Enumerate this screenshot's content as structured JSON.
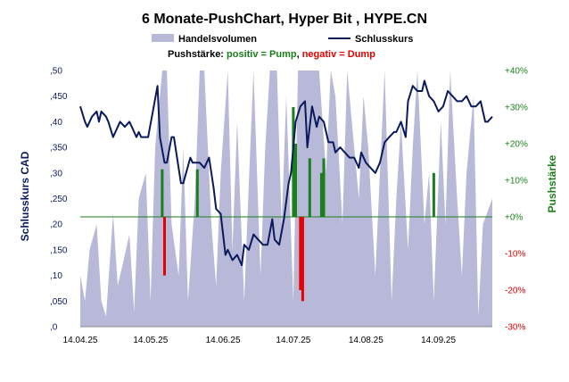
{
  "chart_data": {
    "type": "line",
    "title": "6 Monate-PushChart, Hyper Bit , HYPE.CN",
    "legend": {
      "volume_label": "Handelsvolumen",
      "price_label": "Schlusskurs",
      "push_prefix": "Pushstärke: ",
      "push_positive": "positiv = Pump",
      "push_separator": ", ",
      "push_negative": "negativ = Dump"
    },
    "ylabel": "Schlusskurs CAD",
    "y2label": "Pushstärke",
    "ylim": [
      0,
      0.5
    ],
    "y2lim": [
      -30,
      40
    ],
    "x_range": [
      "2025-04-14",
      "2025-10-07"
    ],
    "y_ticks": [
      ",0",
      ",050",
      ",10",
      ",150",
      ",20",
      ",250",
      ",30",
      ",350",
      ",40",
      ",450",
      ",50"
    ],
    "y2_ticks": [
      "-30%",
      "-20%",
      "-10%",
      "+0%",
      "+10%",
      "+20%",
      "+30%",
      "+40%"
    ],
    "x_ticks": [
      "14.04.25",
      "14.05.25",
      "14.06.25",
      "14.07.25",
      "14.08.25",
      "14.09.25"
    ],
    "colors": {
      "price": "#0a1a5c",
      "volume": "#b8b9d9",
      "pump": "#1a7f1a",
      "dump": "#e60000",
      "zero_line": "#1a7f1a",
      "left_axis": "#0a1a5c",
      "right_axis_pos": "#1a7f1a",
      "right_axis_neg": "#e60000"
    },
    "price_series": {
      "name": "Schlusskurs",
      "x": [
        "2025-04-14",
        "2025-04-16",
        "2025-04-17",
        "2025-04-19",
        "2025-04-21",
        "2025-04-22",
        "2025-04-23",
        "2025-04-25",
        "2025-04-26",
        "2025-04-28",
        "2025-05-01",
        "2025-05-03",
        "2025-05-05",
        "2025-05-06",
        "2025-05-08",
        "2025-05-09",
        "2025-05-10",
        "2025-05-13",
        "2025-05-15",
        "2025-05-17",
        "2025-05-18",
        "2025-05-20",
        "2025-05-21",
        "2025-05-23",
        "2025-05-24",
        "2025-05-27",
        "2025-05-28",
        "2025-05-31",
        "2025-06-01",
        "2025-06-04",
        "2025-06-06",
        "2025-06-08",
        "2025-06-10",
        "2025-06-11",
        "2025-06-13",
        "2025-06-15",
        "2025-06-16",
        "2025-06-18",
        "2025-06-20",
        "2025-06-22",
        "2025-06-23",
        "2025-06-25",
        "2025-06-27",
        "2025-06-29",
        "2025-07-01",
        "2025-07-03",
        "2025-07-05",
        "2025-07-06",
        "2025-07-08",
        "2025-07-10",
        "2025-07-12",
        "2025-07-13",
        "2025-07-15",
        "2025-07-17",
        "2025-07-19",
        "2025-07-20",
        "2025-07-22",
        "2025-07-24",
        "2025-07-25",
        "2025-07-27",
        "2025-07-29",
        "2025-07-31",
        "2025-08-01",
        "2025-08-03",
        "2025-08-05",
        "2025-08-07",
        "2025-08-09",
        "2025-08-11",
        "2025-08-12",
        "2025-08-14",
        "2025-08-16",
        "2025-08-18",
        "2025-08-20",
        "2025-08-22",
        "2025-08-24",
        "2025-08-26",
        "2025-08-27",
        "2025-08-29",
        "2025-08-31",
        "2025-09-01",
        "2025-09-03",
        "2025-09-05",
        "2025-09-07",
        "2025-09-08",
        "2025-09-10",
        "2025-09-12",
        "2025-09-14",
        "2025-09-16",
        "2025-09-18",
        "2025-09-20",
        "2025-09-22",
        "2025-09-24",
        "2025-09-26",
        "2025-09-28",
        "2025-09-30",
        "2025-10-02",
        "2025-10-04",
        "2025-10-05",
        "2025-10-07"
      ],
      "values": [
        0.43,
        0.4,
        0.39,
        0.41,
        0.42,
        0.4,
        0.42,
        0.41,
        0.4,
        0.37,
        0.4,
        0.39,
        0.4,
        0.39,
        0.37,
        0.38,
        0.37,
        0.37,
        0.42,
        0.47,
        0.37,
        0.32,
        0.32,
        0.37,
        0.37,
        0.28,
        0.28,
        0.33,
        0.32,
        0.32,
        0.31,
        0.33,
        0.27,
        0.23,
        0.22,
        0.14,
        0.15,
        0.13,
        0.14,
        0.12,
        0.16,
        0.15,
        0.18,
        0.17,
        0.16,
        0.16,
        0.21,
        0.17,
        0.16,
        0.21,
        0.28,
        0.3,
        0.4,
        0.43,
        0.44,
        0.35,
        0.43,
        0.39,
        0.41,
        0.4,
        0.36,
        0.36,
        0.34,
        0.35,
        0.34,
        0.33,
        0.33,
        0.31,
        0.34,
        0.32,
        0.31,
        0.3,
        0.32,
        0.36,
        0.37,
        0.38,
        0.38,
        0.4,
        0.37,
        0.44,
        0.47,
        0.46,
        0.46,
        0.48,
        0.45,
        0.44,
        0.42,
        0.43,
        0.46,
        0.45,
        0.44,
        0.44,
        0.45,
        0.43,
        0.43,
        0.44,
        0.4,
        0.4,
        0.41
      ]
    },
    "volume_series": {
      "name": "Handelsvolumen",
      "x": [
        "2025-04-14",
        "2025-04-16",
        "2025-04-18",
        "2025-04-21",
        "2025-04-23",
        "2025-04-25",
        "2025-04-28",
        "2025-04-30",
        "2025-05-02",
        "2025-05-05",
        "2025-05-07",
        "2025-05-09",
        "2025-05-12",
        "2025-05-14",
        "2025-05-16",
        "2025-05-19",
        "2025-05-21",
        "2025-05-23",
        "2025-05-26",
        "2025-05-28",
        "2025-05-30",
        "2025-06-02",
        "2025-06-04",
        "2025-06-06",
        "2025-06-09",
        "2025-06-11",
        "2025-06-13",
        "2025-06-16",
        "2025-06-18",
        "2025-06-20",
        "2025-06-23",
        "2025-06-25",
        "2025-06-27",
        "2025-06-30",
        "2025-07-02",
        "2025-07-04",
        "2025-07-07",
        "2025-07-09",
        "2025-07-11",
        "2025-07-14",
        "2025-07-16",
        "2025-07-18",
        "2025-07-21",
        "2025-07-23",
        "2025-07-25",
        "2025-07-28",
        "2025-07-30",
        "2025-08-01",
        "2025-08-04",
        "2025-08-06",
        "2025-08-08",
        "2025-08-11",
        "2025-08-13",
        "2025-08-15",
        "2025-08-18",
        "2025-08-20",
        "2025-08-22",
        "2025-08-25",
        "2025-08-27",
        "2025-08-29",
        "2025-09-01",
        "2025-09-03",
        "2025-09-05",
        "2025-09-08",
        "2025-09-10",
        "2025-09-12",
        "2025-09-15",
        "2025-09-17",
        "2025-09-19",
        "2025-09-22",
        "2025-09-24",
        "2025-09-26",
        "2025-09-29",
        "2025-10-01",
        "2025-10-03",
        "2025-10-07"
      ],
      "values": [
        0.1,
        0.05,
        0.15,
        0.2,
        0.05,
        0.02,
        0.22,
        0.08,
        0.12,
        0.18,
        0.03,
        0.25,
        0.3,
        0.05,
        0.35,
        0.5,
        0.5,
        0.2,
        0.1,
        0.35,
        0.05,
        0.25,
        0.5,
        0.5,
        0.2,
        0.08,
        0.3,
        0.5,
        0.15,
        0.4,
        0.05,
        0.28,
        0.5,
        0.1,
        0.35,
        0.5,
        0.5,
        0.2,
        0.45,
        0.05,
        0.5,
        0.5,
        0.5,
        0.5,
        0.5,
        0.3,
        0.5,
        0.45,
        0.2,
        0.5,
        0.4,
        0.25,
        0.45,
        0.35,
        0.1,
        0.3,
        0.5,
        0.05,
        0.25,
        0.4,
        0.15,
        0.35,
        0.5,
        0.2,
        0.3,
        0.05,
        0.4,
        0.2,
        0.5,
        0.25,
        0.1,
        0.3,
        0.45,
        0.02,
        0.2,
        0.25
      ]
    },
    "push_bars": [
      {
        "x": "2025-05-19",
        "value": 13
      },
      {
        "x": "2025-05-20",
        "value": -16
      },
      {
        "x": "2025-06-03",
        "value": 13
      },
      {
        "x": "2025-07-14",
        "value": 30
      },
      {
        "x": "2025-07-15",
        "value": 20
      },
      {
        "x": "2025-07-17",
        "value": -20
      },
      {
        "x": "2025-07-18",
        "value": -23
      },
      {
        "x": "2025-07-21",
        "value": 16
      },
      {
        "x": "2025-07-26",
        "value": 12
      },
      {
        "x": "2025-07-27",
        "value": 16
      },
      {
        "x": "2025-09-12",
        "value": 12
      }
    ]
  }
}
